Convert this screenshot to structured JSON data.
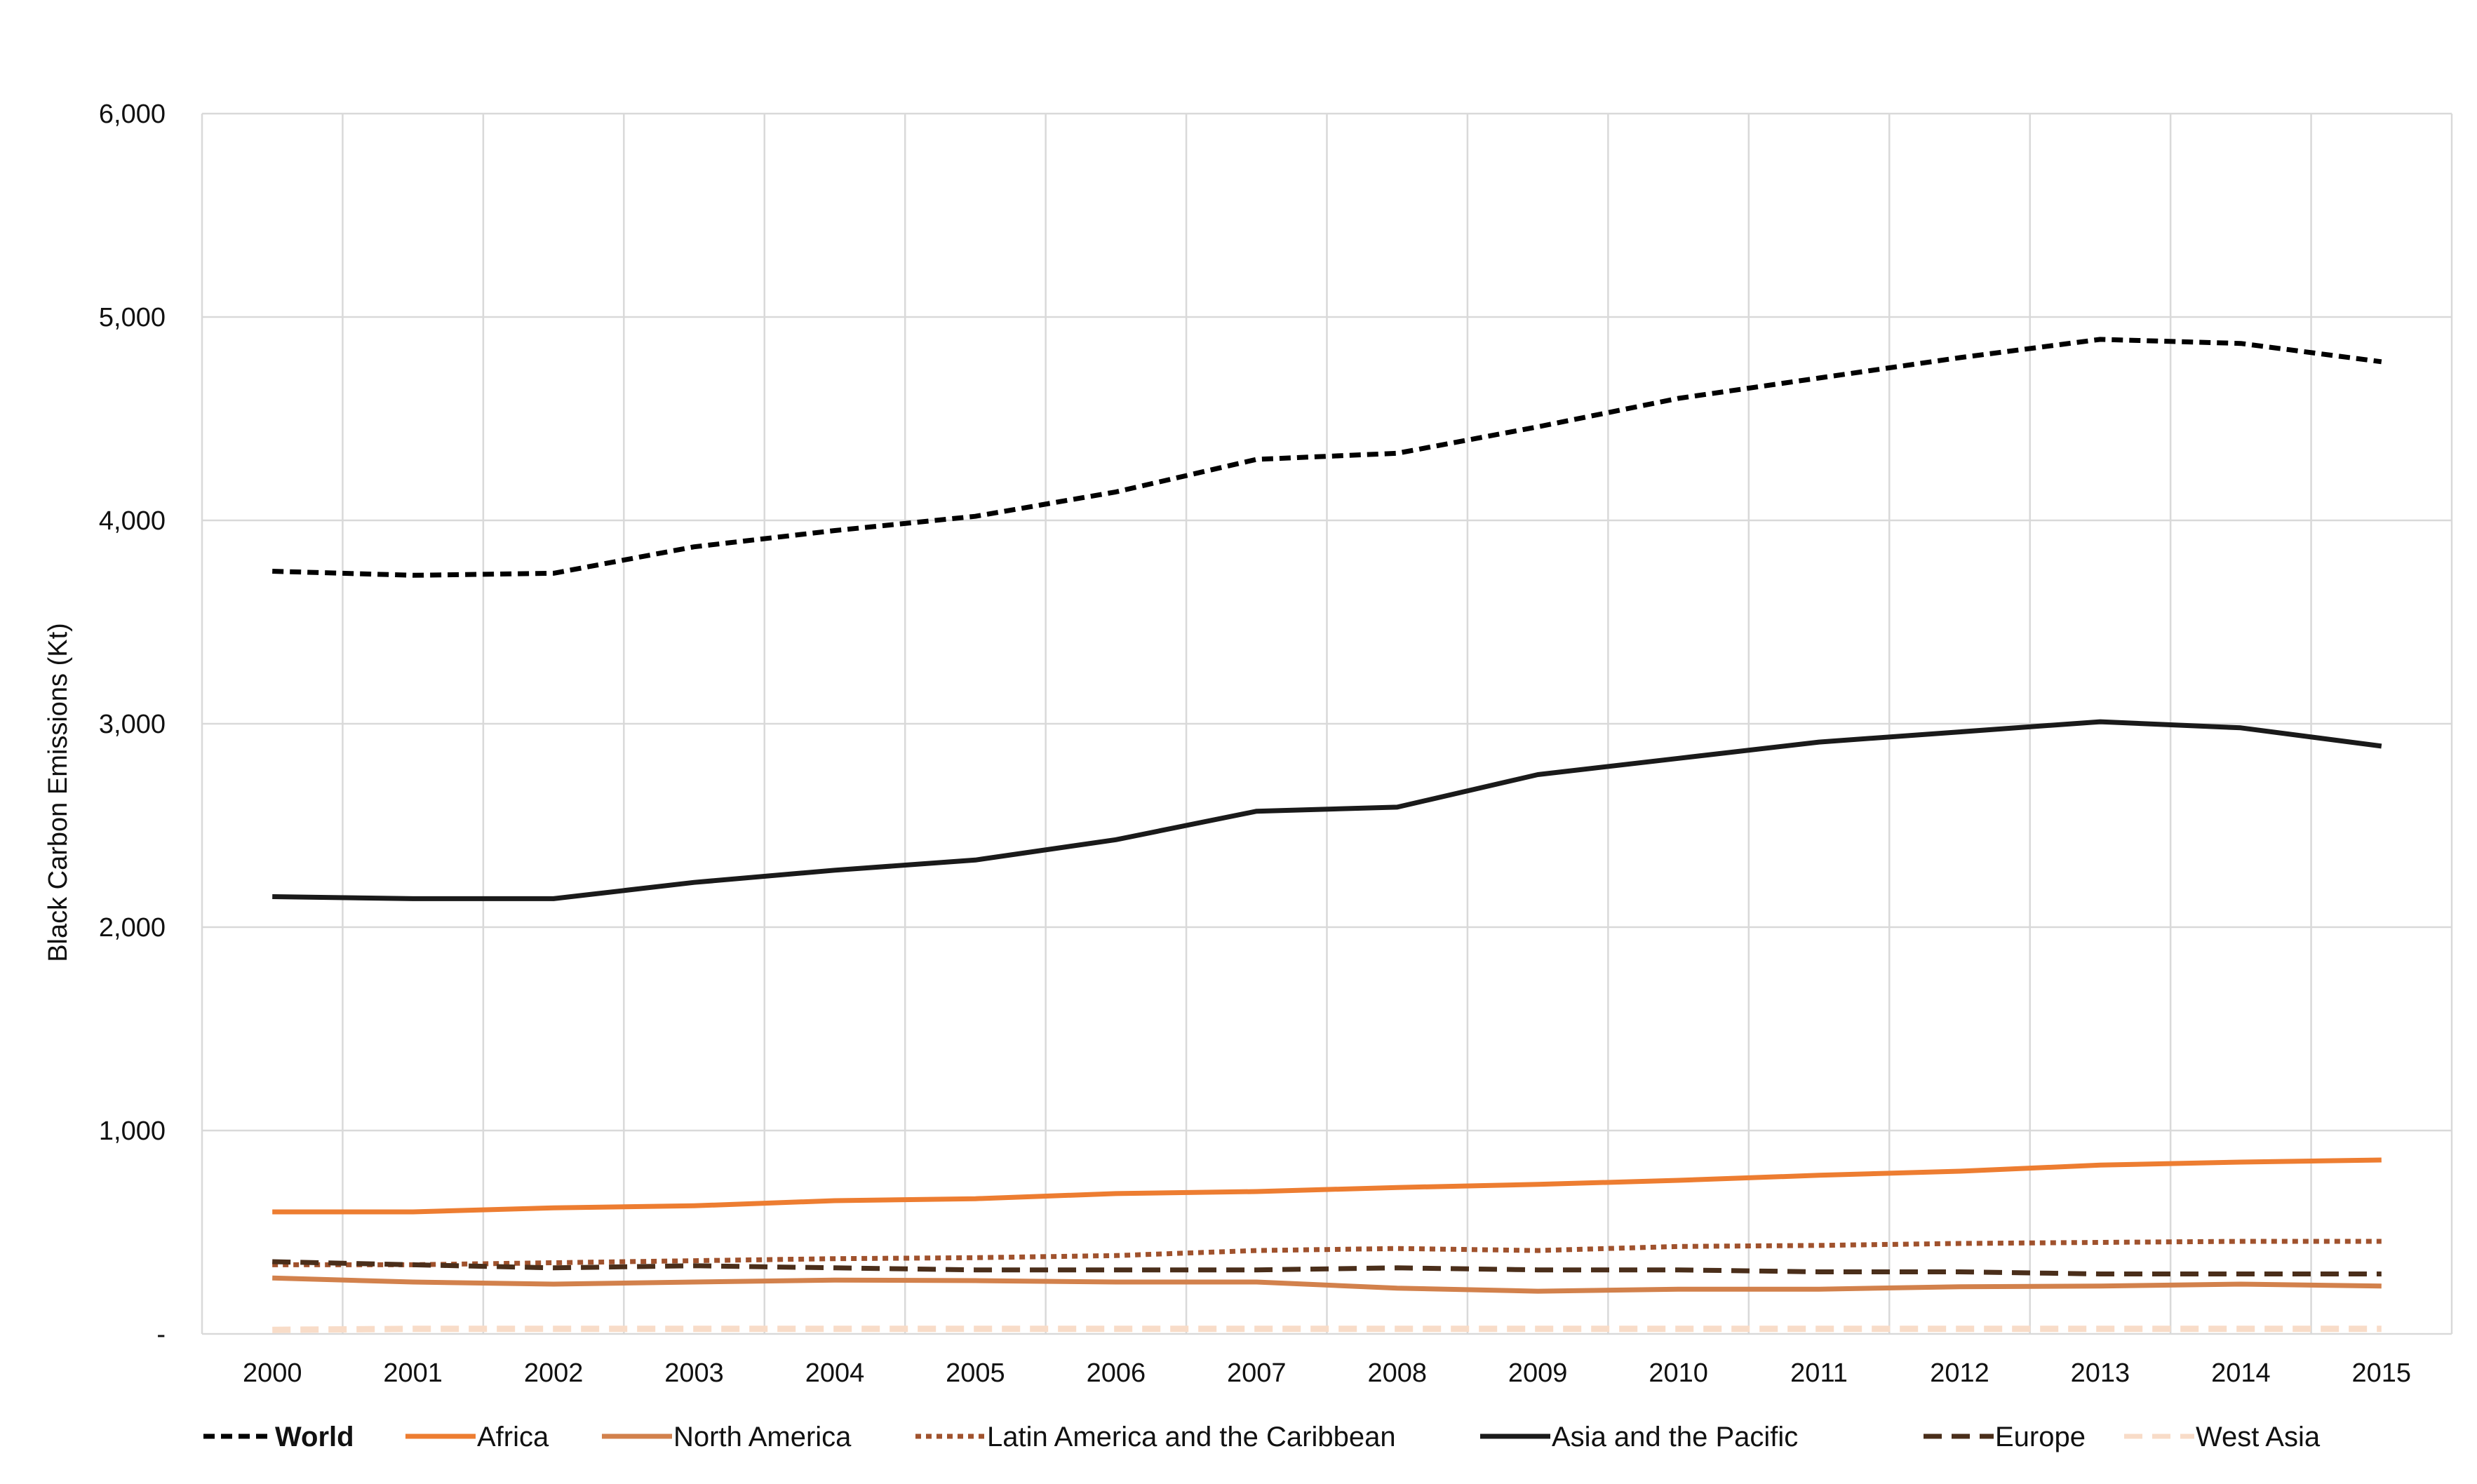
{
  "chart_data": {
    "type": "line",
    "title": "",
    "xlabel": "",
    "ylabel": "Black Carbon  Emissions  (Kt)",
    "ylim": [
      0,
      6000
    ],
    "yticks": [
      0,
      1000,
      2000,
      3000,
      4000,
      5000,
      6000
    ],
    "ytick_labels": [
      "-",
      "1,000",
      "2,000",
      "3,000",
      "4,000",
      "5,000",
      "6,000"
    ],
    "categories": [
      "2000",
      "2001",
      "2002",
      "2003",
      "2004",
      "2005",
      "2006",
      "2007",
      "2008",
      "2009",
      "2010",
      "2011",
      "2012",
      "2013",
      "2014",
      "2015"
    ],
    "grid": true,
    "legend_position": "bottom",
    "series": [
      {
        "name": "World",
        "color": "#000000",
        "style": "dashed",
        "bold": true,
        "values": [
          3750,
          3730,
          3740,
          3870,
          3950,
          4020,
          4140,
          4300,
          4330,
          4460,
          4600,
          4700,
          4800,
          4890,
          4870,
          4780
        ]
      },
      {
        "name": "Africa",
        "color": "#ED7D31",
        "style": "solid",
        "bold": false,
        "values": [
          600,
          600,
          620,
          630,
          655,
          665,
          690,
          700,
          720,
          735,
          755,
          780,
          800,
          830,
          845,
          855
        ]
      },
      {
        "name": "North America",
        "color": "#D2814C",
        "style": "solid",
        "bold": false,
        "values": [
          275,
          255,
          245,
          255,
          265,
          262,
          255,
          255,
          225,
          210,
          220,
          220,
          232,
          235,
          245,
          235
        ]
      },
      {
        "name": "Latin America and the Caribbean",
        "color": "#A0522D",
        "style": "dotted",
        "bold": false,
        "values": [
          340,
          340,
          350,
          360,
          370,
          375,
          385,
          410,
          420,
          410,
          430,
          435,
          445,
          450,
          455,
          455
        ]
      },
      {
        "name": "Asia and the Pacific",
        "color": "#1A1A1A",
        "style": "solid",
        "bold": false,
        "values": [
          2150,
          2140,
          2140,
          2220,
          2280,
          2330,
          2430,
          2570,
          2590,
          2750,
          2830,
          2910,
          2960,
          3010,
          2980,
          2890
        ]
      },
      {
        "name": "Europe",
        "color": "#4A2E1A",
        "style": "longdash",
        "bold": false,
        "values": [
          355,
          340,
          325,
          335,
          325,
          315,
          315,
          315,
          325,
          315,
          315,
          305,
          305,
          295,
          295,
          295
        ]
      },
      {
        "name": "West Asia",
        "color": "#F8DCC8",
        "style": "longdash",
        "bold": false,
        "values": [
          20,
          25,
          25,
          25,
          25,
          25,
          25,
          25,
          25,
          25,
          25,
          25,
          25,
          25,
          25,
          25
        ]
      }
    ]
  }
}
